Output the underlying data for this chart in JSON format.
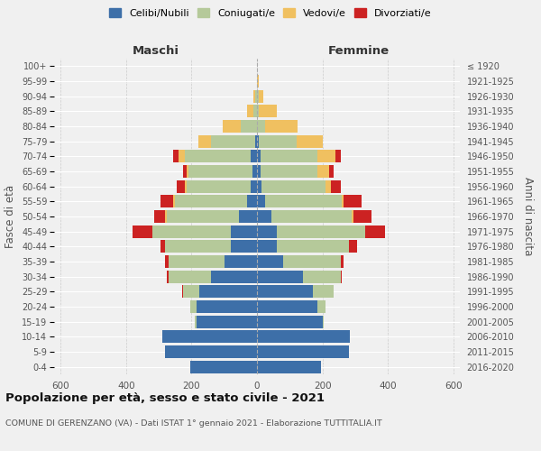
{
  "age_groups": [
    "0-4",
    "5-9",
    "10-14",
    "15-19",
    "20-24",
    "25-29",
    "30-34",
    "35-39",
    "40-44",
    "45-49",
    "50-54",
    "55-59",
    "60-64",
    "65-69",
    "70-74",
    "75-79",
    "80-84",
    "85-89",
    "90-94",
    "95-99",
    "100+"
  ],
  "birth_years": [
    "2016-2020",
    "2011-2015",
    "2006-2010",
    "2001-2005",
    "1996-2000",
    "1991-1995",
    "1986-1990",
    "1981-1985",
    "1976-1980",
    "1971-1975",
    "1966-1970",
    "1961-1965",
    "1956-1960",
    "1951-1955",
    "1946-1950",
    "1941-1945",
    "1936-1940",
    "1931-1935",
    "1926-1930",
    "1921-1925",
    "≤ 1920"
  ],
  "males": {
    "celibi": [
      205,
      280,
      290,
      185,
      185,
      175,
      140,
      100,
      80,
      80,
      55,
      30,
      20,
      15,
      20,
      5,
      0,
      0,
      0,
      0,
      0
    ],
    "coniugati": [
      0,
      0,
      0,
      5,
      20,
      50,
      130,
      170,
      200,
      240,
      220,
      220,
      195,
      195,
      200,
      135,
      50,
      10,
      5,
      0,
      0
    ],
    "vedovi": [
      0,
      0,
      0,
      0,
      0,
      0,
      0,
      0,
      0,
      0,
      5,
      5,
      5,
      5,
      20,
      40,
      55,
      20,
      5,
      0,
      0
    ],
    "divorziati": [
      0,
      0,
      0,
      0,
      0,
      5,
      5,
      10,
      15,
      60,
      35,
      40,
      25,
      10,
      15,
      0,
      0,
      0,
      0,
      0,
      0
    ]
  },
  "females": {
    "nubili": [
      195,
      280,
      285,
      200,
      185,
      170,
      140,
      80,
      60,
      60,
      45,
      25,
      15,
      10,
      10,
      5,
      0,
      0,
      0,
      0,
      0
    ],
    "coniugate": [
      0,
      0,
      0,
      5,
      25,
      65,
      115,
      175,
      220,
      270,
      245,
      235,
      195,
      175,
      175,
      115,
      25,
      5,
      5,
      0,
      0
    ],
    "vedove": [
      0,
      0,
      0,
      0,
      0,
      0,
      0,
      0,
      0,
      0,
      5,
      5,
      15,
      35,
      55,
      80,
      100,
      55,
      15,
      5,
      1
    ],
    "divorziate": [
      0,
      0,
      0,
      0,
      0,
      0,
      5,
      10,
      25,
      60,
      55,
      55,
      30,
      15,
      15,
      0,
      0,
      0,
      0,
      0,
      0
    ]
  },
  "colors": {
    "celibi": "#3d6fa8",
    "coniugati": "#b5c99a",
    "vedovi": "#f0c060",
    "divorziati": "#cc2222"
  },
  "xlim": 620,
  "title": "Popolazione per età, sesso e stato civile - 2021",
  "subtitle": "COMUNE DI GERENZANO (VA) - Dati ISTAT 1° gennaio 2021 - Elaborazione TUTTITALIA.IT",
  "ylabel_left": "Fasce di età",
  "ylabel_right": "Anni di nascita",
  "xlabel_maschi": "Maschi",
  "xlabel_femmine": "Femmine",
  "bg_color": "#f0f0f0",
  "bar_height": 0.85
}
